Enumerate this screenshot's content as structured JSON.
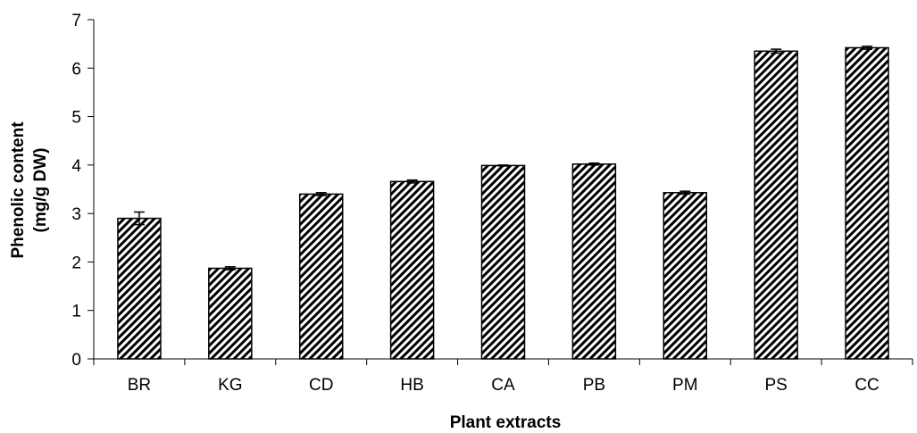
{
  "chart_data": {
    "type": "bar",
    "title": "",
    "xlabel": "Plant extracts",
    "ylabel_lines": [
      "Phenolic content",
      "(mg/g DW)"
    ],
    "categories": [
      "BR",
      "KG",
      "CD",
      "HB",
      "CA",
      "PB",
      "PM",
      "PS",
      "CC"
    ],
    "values": [
      2.9,
      1.87,
      3.4,
      3.66,
      3.99,
      4.02,
      3.43,
      6.35,
      6.42
    ],
    "errors": [
      0.13,
      0.03,
      0.03,
      0.03,
      0.01,
      0.02,
      0.03,
      0.04,
      0.03
    ],
    "ylim": [
      0,
      7
    ],
    "yticks": [
      0,
      1,
      2,
      3,
      4,
      5,
      6,
      7
    ],
    "grid": false,
    "legend": "none",
    "bar_fill": "diagonal-hatch",
    "colors": {
      "bar_stroke": "#000000",
      "hatch": "#000000",
      "background": "#ffffff"
    }
  }
}
